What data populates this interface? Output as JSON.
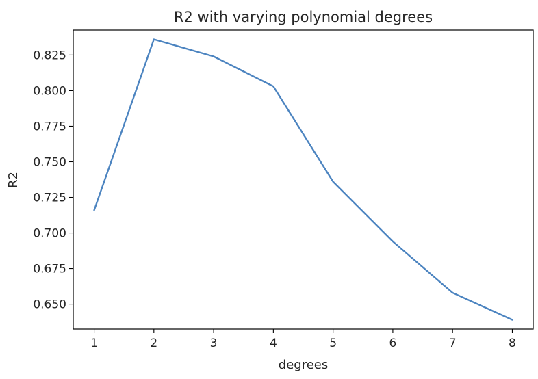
{
  "chart_data": {
    "type": "line",
    "title": "R2 with varying polynomial degrees",
    "xlabel": "degrees",
    "ylabel": "R2",
    "x": [
      1,
      2,
      3,
      4,
      5,
      6,
      7,
      8
    ],
    "series": [
      {
        "values": [
          0.716,
          0.836,
          0.824,
          0.803,
          0.736,
          0.694,
          0.658,
          0.639
        ],
        "color": "#4c84c0"
      }
    ],
    "xlim": [
      0.65,
      8.35
    ],
    "ylim": [
      0.6325,
      0.8425
    ],
    "xticks": [
      1,
      2,
      3,
      4,
      5,
      6,
      7,
      8
    ],
    "xtick_labels": [
      "1",
      "2",
      "3",
      "4",
      "5",
      "6",
      "7",
      "8"
    ],
    "yticks": [
      0.65,
      0.675,
      0.7,
      0.725,
      0.75,
      0.775,
      0.8,
      0.825
    ],
    "ytick_labels": [
      "0.650",
      "0.675",
      "0.700",
      "0.725",
      "0.750",
      "0.775",
      "0.800",
      "0.825"
    ],
    "grid": false,
    "legend": "none"
  }
}
